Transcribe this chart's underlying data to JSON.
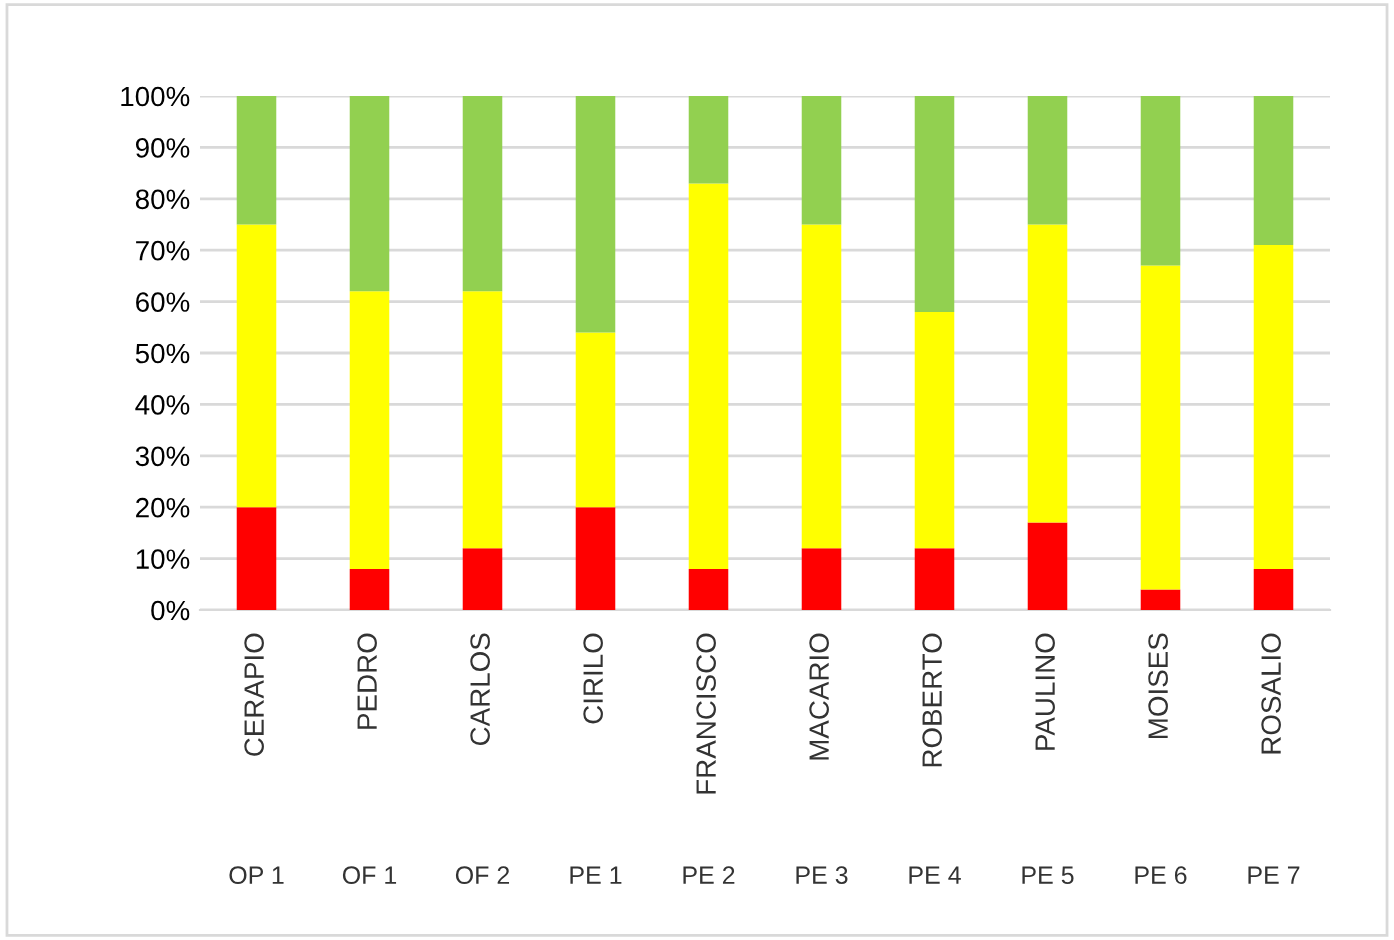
{
  "chart_data": {
    "type": "bar",
    "stacked": true,
    "categories": [
      "CERAPIO",
      "PEDRO",
      "CARLOS",
      "CIRILO",
      "FRANCISCO",
      "MACARIO",
      "ROBERTO",
      "PAULINO",
      "MOISES",
      "ROSALIO"
    ],
    "series": [
      {
        "color": "#ff0000",
        "values": [
          20,
          8,
          12,
          20,
          8,
          12,
          12,
          17,
          4,
          8
        ]
      },
      {
        "color": "#ffff00",
        "values": [
          55,
          54,
          50,
          34,
          75,
          63,
          46,
          58,
          63,
          63
        ]
      },
      {
        "color": "#92d050",
        "values": [
          25,
          38,
          38,
          46,
          17,
          25,
          42,
          25,
          33,
          29
        ]
      }
    ],
    "ylim": [
      0,
      100
    ],
    "yticks": [
      {
        "value": 0,
        "label": "0%"
      },
      {
        "value": 10,
        "label": "10%"
      },
      {
        "value": 20,
        "label": "20%"
      },
      {
        "value": 30,
        "label": "30%"
      },
      {
        "value": 40,
        "label": "40%"
      },
      {
        "value": 50,
        "label": "50%"
      },
      {
        "value": 60,
        "label": "60%"
      },
      {
        "value": 70,
        "label": "70%"
      },
      {
        "value": 80,
        "label": "80%"
      },
      {
        "value": 90,
        "label": "90%"
      },
      {
        "value": 100,
        "label": "100%"
      }
    ],
    "grid": "y",
    "legend": false,
    "annotations": [
      "OP 1",
      "OF 1",
      "OF 2",
      "PE 1",
      "PE 2",
      "PE 3",
      "PE 4",
      "PE 5",
      "PE 6",
      "PE 7"
    ]
  }
}
